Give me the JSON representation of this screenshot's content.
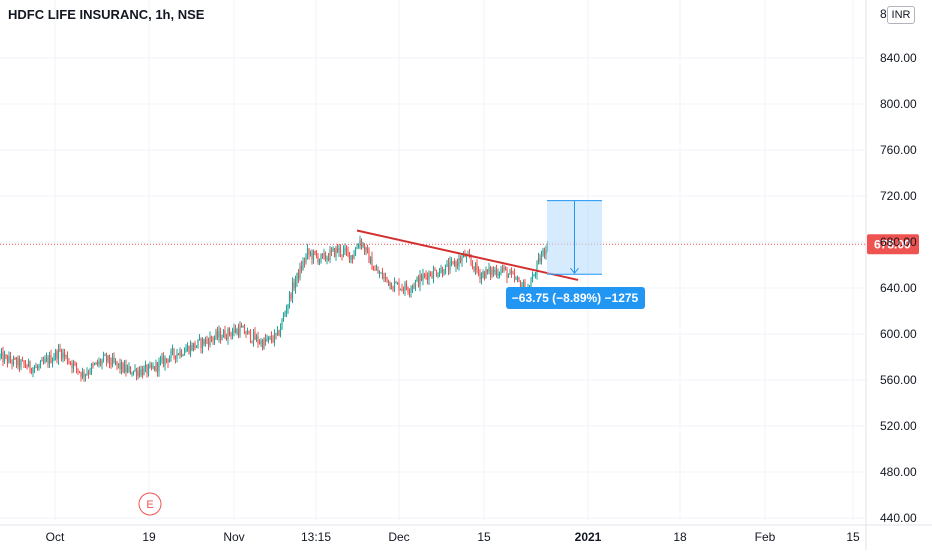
{
  "header": {
    "title": "HDFC LIFE INSURANC, 1h, NSE"
  },
  "currency": "INR",
  "price_label": "678.00",
  "measure_label": "−63.75 (−8.89%) −1275",
  "earnings_marker": "E",
  "colors": {
    "up": "#26a69a",
    "down": "#ef5350",
    "trendline": "#d32f2f",
    "price_line": "#ef5350",
    "measure_fill": "#bbdefb",
    "measure_stroke": "#2196f3",
    "measure_label_bg": "#2196f3",
    "grid": "#f0f3fa"
  },
  "chart_data": {
    "type": "candlestick",
    "title": "HDFC LIFE INSURANC, 1h, NSE",
    "y_axis": {
      "ticks": [
        "440.00",
        "480.00",
        "520.00",
        "560.00",
        "600.00",
        "640.00",
        "680.00",
        "720.00",
        "760.00",
        "800.00",
        "840.00"
      ],
      "top_label": "8",
      "range": [
        440,
        880
      ]
    },
    "x_axis": {
      "ticks": [
        "Oct",
        "19",
        "Nov",
        "13:15",
        "Dec",
        "15",
        "2021",
        "18",
        "Feb",
        "15"
      ]
    },
    "last_price": 678.0,
    "trend_anchors": [
      {
        "t": 0,
        "p": 580
      },
      {
        "t": 10,
        "p": 575
      },
      {
        "t": 25,
        "p": 570
      },
      {
        "t": 40,
        "p": 585
      },
      {
        "t": 55,
        "p": 565
      },
      {
        "t": 70,
        "p": 578
      },
      {
        "t": 85,
        "p": 568
      },
      {
        "t": 100,
        "p": 568
      },
      {
        "t": 115,
        "p": 582
      },
      {
        "t": 130,
        "p": 590
      },
      {
        "t": 145,
        "p": 598
      },
      {
        "t": 160,
        "p": 604
      },
      {
        "t": 175,
        "p": 592
      },
      {
        "t": 185,
        "p": 598
      },
      {
        "t": 195,
        "p": 640
      },
      {
        "t": 205,
        "p": 670
      },
      {
        "t": 215,
        "p": 665
      },
      {
        "t": 225,
        "p": 673
      },
      {
        "t": 235,
        "p": 668
      },
      {
        "t": 240,
        "p": 682
      },
      {
        "t": 250,
        "p": 655
      },
      {
        "t": 262,
        "p": 643
      },
      {
        "t": 272,
        "p": 640
      },
      {
        "t": 285,
        "p": 652
      },
      {
        "t": 300,
        "p": 658
      },
      {
        "t": 310,
        "p": 668
      },
      {
        "t": 320,
        "p": 652
      },
      {
        "t": 335,
        "p": 656
      },
      {
        "t": 345,
        "p": 645
      },
      {
        "t": 352,
        "p": 638
      },
      {
        "t": 360,
        "p": 665
      },
      {
        "t": 365,
        "p": 678
      }
    ],
    "trendline": {
      "from": {
        "t": 230,
        "p": 690
      },
      "to": {
        "t": 372,
        "p": 647
      }
    },
    "measure": {
      "price_from": 716,
      "price_to": 652,
      "change": -63.75,
      "change_pct": -8.89,
      "bars": -1275
    }
  }
}
